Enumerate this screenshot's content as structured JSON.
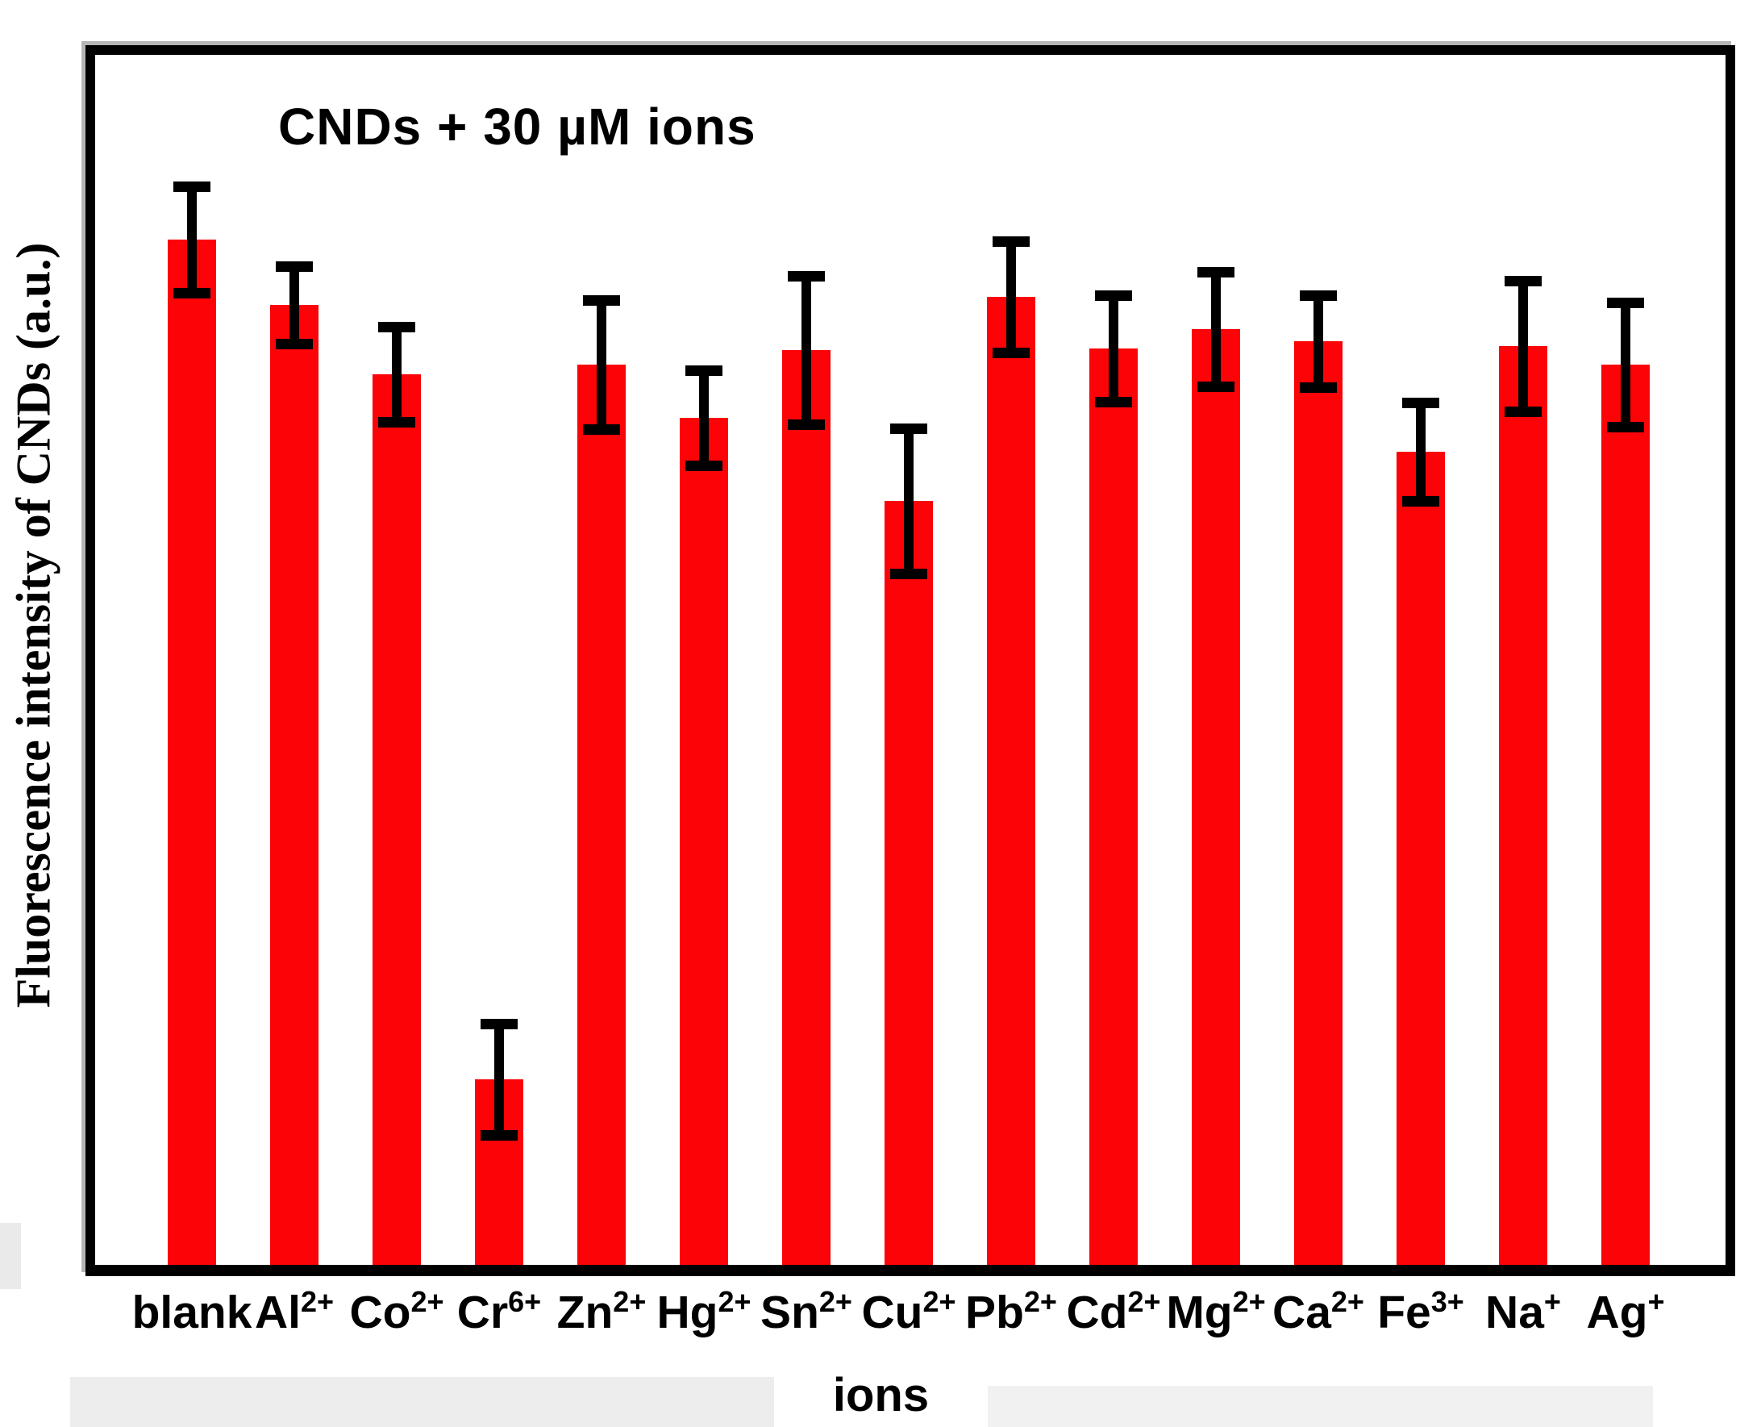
{
  "figure": {
    "title": "CNDs + 30 µM ions",
    "y_axis_label": "Fluorescence intensity of CNDs (a.u.)",
    "x_axis_label": "ions"
  },
  "colors": {
    "bar_fill": "#fb0307",
    "error_bar": "#000000",
    "frame": "#000000",
    "background": "#ffffff"
  },
  "chart_data": {
    "type": "bar",
    "title": "CNDs + 30 µM ions",
    "xlabel": "ions",
    "ylabel": "Fluorescence intensity of CNDs (a.u.)",
    "y_units": "arbitrary units (no numeric ticks shown)",
    "ylim": [
      0,
      100
    ],
    "grid": false,
    "legend": "none",
    "bar_color": "#fb0307",
    "error_bar_color": "#000000",
    "categories": [
      "blank",
      "Al2+",
      "Co2+",
      "Cr6+",
      "Zn2+",
      "Hg2+",
      "Sn2+",
      "Cu2+",
      "Pb2+",
      "Cd2+",
      "Mg2+",
      "Ca2+",
      "Fe3+",
      "Na+",
      "Ag+"
    ],
    "categories_display": [
      {
        "base": "blank",
        "sup": ""
      },
      {
        "base": "Al",
        "sup": "2+"
      },
      {
        "base": "Co",
        "sup": "2+"
      },
      {
        "base": "Cr",
        "sup": "6+"
      },
      {
        "base": "Zn",
        "sup": "2+"
      },
      {
        "base": "Hg",
        "sup": "2+"
      },
      {
        "base": "Sn",
        "sup": "2+"
      },
      {
        "base": "Cu",
        "sup": "2+"
      },
      {
        "base": "Pb",
        "sup": "2+"
      },
      {
        "base": "Cd",
        "sup": "2+"
      },
      {
        "base": "Mg",
        "sup": "2+"
      },
      {
        "base": "Ca",
        "sup": "2+"
      },
      {
        "base": "Fe",
        "sup": "3+"
      },
      {
        "base": "Na",
        "sup": "+"
      },
      {
        "base": "Ag",
        "sup": "+"
      }
    ],
    "values": [
      84.7,
      79.3,
      73.6,
      15.3,
      74.4,
      70.0,
      75.6,
      63.1,
      80.0,
      75.7,
      77.3,
      76.3,
      67.2,
      75.9,
      74.4
    ],
    "errors": [
      4.4,
      3.2,
      3.9,
      4.6,
      5.3,
      3.9,
      6.1,
      6.0,
      4.6,
      4.4,
      4.7,
      3.8,
      4.1,
      5.4,
      5.1
    ]
  }
}
